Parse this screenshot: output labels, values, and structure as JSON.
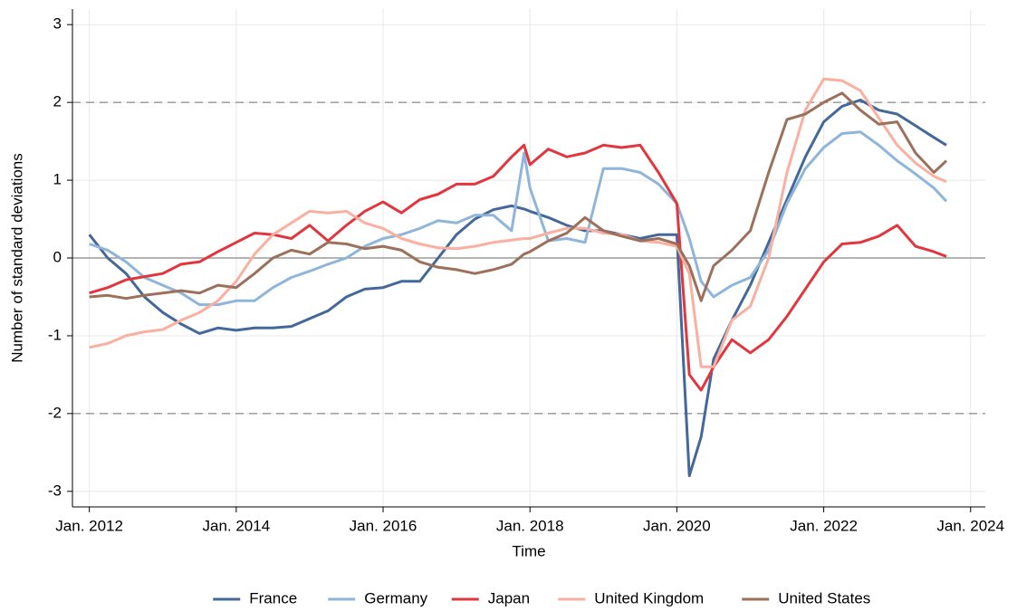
{
  "chart_data": {
    "type": "line",
    "x_label": "Time",
    "y_label": "Number of standard deviations",
    "x": [
      2012.0,
      2012.25,
      2012.5,
      2012.75,
      2013.0,
      2013.25,
      2013.5,
      2013.75,
      2014.0,
      2014.25,
      2014.5,
      2014.75,
      2015.0,
      2015.25,
      2015.5,
      2015.75,
      2016.0,
      2016.25,
      2016.5,
      2016.75,
      2017.0,
      2017.25,
      2017.5,
      2017.75,
      2017.92,
      2018.0,
      2018.25,
      2018.5,
      2018.75,
      2019.0,
      2019.25,
      2019.5,
      2019.75,
      2020.0,
      2020.17,
      2020.33,
      2020.5,
      2020.75,
      2021.0,
      2021.25,
      2021.5,
      2021.75,
      2022.0,
      2022.25,
      2022.5,
      2022.75,
      2023.0,
      2023.25,
      2023.5,
      2023.67
    ],
    "series": [
      {
        "name": "France",
        "color": "#44689a",
        "values": [
          0.3,
          0.0,
          -0.2,
          -0.5,
          -0.7,
          -0.85,
          -0.97,
          -0.9,
          -0.93,
          -0.9,
          -0.9,
          -0.88,
          -0.78,
          -0.68,
          -0.5,
          -0.4,
          -0.38,
          -0.3,
          -0.3,
          0.0,
          0.3,
          0.5,
          0.62,
          0.67,
          0.63,
          0.6,
          0.52,
          0.42,
          0.35,
          0.35,
          0.3,
          0.25,
          0.3,
          0.3,
          -2.8,
          -2.3,
          -1.3,
          -0.8,
          -0.35,
          0.2,
          0.75,
          1.3,
          1.75,
          1.95,
          2.03,
          1.9,
          1.85,
          1.7,
          1.55,
          1.45
        ]
      },
      {
        "name": "Germany",
        "color": "#8fb5db",
        "values": [
          0.18,
          0.1,
          -0.05,
          -0.25,
          -0.35,
          -0.45,
          -0.6,
          -0.6,
          -0.55,
          -0.55,
          -0.38,
          -0.25,
          -0.17,
          -0.08,
          0.0,
          0.15,
          0.25,
          0.3,
          0.38,
          0.48,
          0.45,
          0.55,
          0.55,
          0.35,
          1.35,
          0.9,
          0.22,
          0.25,
          0.2,
          1.15,
          1.15,
          1.1,
          0.95,
          0.7,
          0.25,
          -0.3,
          -0.5,
          -0.35,
          -0.25,
          0.1,
          0.7,
          1.15,
          1.42,
          1.6,
          1.62,
          1.45,
          1.25,
          1.08,
          0.9,
          0.73
        ]
      },
      {
        "name": "Japan",
        "color": "#e2363f",
        "values": [
          -0.45,
          -0.38,
          -0.28,
          -0.24,
          -0.2,
          -0.08,
          -0.05,
          0.08,
          0.2,
          0.32,
          0.3,
          0.25,
          0.42,
          0.22,
          0.42,
          0.6,
          0.72,
          0.58,
          0.75,
          0.82,
          0.95,
          0.95,
          1.05,
          1.3,
          1.45,
          1.2,
          1.4,
          1.3,
          1.35,
          1.45,
          1.42,
          1.45,
          1.1,
          0.7,
          -1.5,
          -1.7,
          -1.4,
          -1.05,
          -1.22,
          -1.05,
          -0.75,
          -0.4,
          -0.05,
          0.18,
          0.2,
          0.28,
          0.42,
          0.15,
          0.08,
          0.02
        ]
      },
      {
        "name": "United Kingdom",
        "color": "#f9b0a0",
        "values": [
          -1.15,
          -1.1,
          -1.0,
          -0.95,
          -0.92,
          -0.8,
          -0.7,
          -0.55,
          -0.3,
          0.05,
          0.3,
          0.45,
          0.6,
          0.58,
          0.6,
          0.45,
          0.38,
          0.25,
          0.18,
          0.13,
          0.12,
          0.15,
          0.2,
          0.23,
          0.25,
          0.25,
          0.32,
          0.38,
          0.38,
          0.32,
          0.3,
          0.22,
          0.2,
          0.15,
          -0.2,
          -1.4,
          -1.4,
          -0.8,
          -0.62,
          0.0,
          1.1,
          1.9,
          2.3,
          2.28,
          2.15,
          1.8,
          1.45,
          1.22,
          1.05,
          0.98
        ]
      },
      {
        "name": "United States",
        "color": "#9c705a",
        "values": [
          -0.5,
          -0.48,
          -0.52,
          -0.48,
          -0.45,
          -0.42,
          -0.45,
          -0.35,
          -0.38,
          -0.2,
          0.0,
          0.1,
          0.05,
          0.2,
          0.18,
          0.12,
          0.15,
          0.1,
          -0.05,
          -0.12,
          -0.15,
          -0.2,
          -0.15,
          -0.08,
          0.05,
          0.08,
          0.22,
          0.32,
          0.52,
          0.35,
          0.28,
          0.22,
          0.25,
          0.18,
          -0.1,
          -0.55,
          -0.1,
          0.1,
          0.35,
          1.1,
          1.78,
          1.85,
          2.0,
          2.12,
          1.9,
          1.72,
          1.75,
          1.35,
          1.1,
          1.25
        ]
      }
    ],
    "xlim": [
      2011.77,
      2024.2
    ],
    "ylim": [
      -3.2,
      3.2
    ],
    "xticks": [
      {
        "value": 2012,
        "label": "Jan. 2012"
      },
      {
        "value": 2014,
        "label": "Jan. 2014"
      },
      {
        "value": 2016,
        "label": "Jan. 2016"
      },
      {
        "value": 2018,
        "label": "Jan. 2018"
      },
      {
        "value": 2020,
        "label": "Jan. 2020"
      },
      {
        "value": 2022,
        "label": "Jan. 2022"
      },
      {
        "value": 2024,
        "label": "Jan. 2024"
      }
    ],
    "yticks": [
      -3,
      -2,
      -1,
      0,
      1,
      2,
      3
    ],
    "grid": true,
    "reference_lines": [
      {
        "value": 2,
        "style": "dashed"
      },
      {
        "value": -2,
        "style": "dashed"
      },
      {
        "value": 0,
        "style": "solid"
      }
    ],
    "legend": "bottom"
  }
}
